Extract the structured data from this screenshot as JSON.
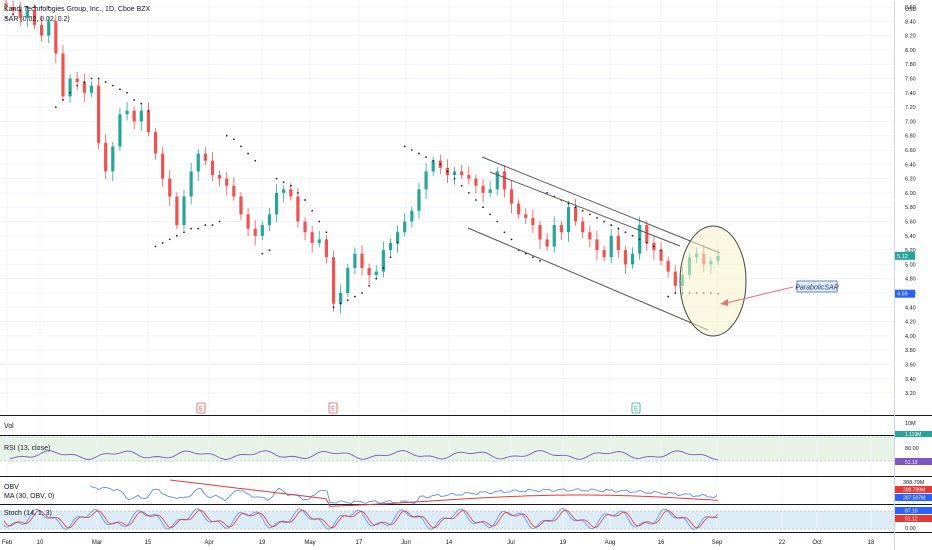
{
  "header": {
    "title": "Kandi Technologies Group, Inc., 1D, Cboe BZX",
    "indicator": "SAR (0.02, 0.02, 0.2)"
  },
  "axis": {
    "currency": "USD",
    "price_ticks": [
      "8.60",
      "8.40",
      "8.20",
      "8.00",
      "7.80",
      "7.60",
      "7.40",
      "7.20",
      "7.00",
      "6.80",
      "6.60",
      "6.40",
      "6.20",
      "6.00",
      "5.80",
      "5.60",
      "5.40",
      "5.20",
      "5.00",
      "4.80",
      "4.60",
      "4.40",
      "4.20",
      "4.00",
      "3.80",
      "3.60",
      "3.40",
      "3.20"
    ],
    "price_badges": [
      {
        "label": "5.12",
        "value": 5.12,
        "color": "#26a69a"
      },
      {
        "label": "4.59",
        "value": 4.59,
        "color": "#2962ff"
      }
    ],
    "x_ticks": [
      "Feb",
      "10",
      "Mar",
      "15",
      "Apr",
      "19",
      "May",
      "17",
      "Jun",
      "14",
      "Jul",
      "19",
      "Aug",
      "16",
      "Sep",
      "22",
      "Oct",
      "18"
    ]
  },
  "annotation": {
    "label": "ParabolicSAR"
  },
  "earnings_markers": [
    {
      "label": "E",
      "color": "#ef5350"
    },
    {
      "label": "E",
      "color": "#ef5350"
    },
    {
      "label": "E",
      "color": "#26a69a"
    }
  ],
  "panes": {
    "vol": {
      "title": "Vol",
      "scale": "10M",
      "badge": "1.119M"
    },
    "rsi": {
      "title": "RSI (13, close)",
      "scale": "80.00",
      "badge": "51.19"
    },
    "obv": {
      "title": "OBV",
      "subtitle": "MA (30, OBV, 0)",
      "scale": "308.79M",
      "badge1": "308.799M",
      "badge2": "307.507M"
    },
    "stoch": {
      "title": "Stoch (14, 1, 3)",
      "scale": "0.00",
      "badge1": "87.10",
      "badge2": "51.12"
    }
  },
  "colors": {
    "up": "#26a69a",
    "down": "#ef5350",
    "rsi": "#7e57c2",
    "obv": "#5b8def",
    "ma": "#e53935"
  },
  "chart_data": {
    "type": "candlestick",
    "title": "Kandi Technologies Group, Inc., 1D, Cboe BZX",
    "ylim": [
      3.1,
      8.7
    ],
    "grid": true,
    "close": [
      8.6,
      8.55,
      8.45,
      8.55,
      8.35,
      8.2,
      8.4,
      7.95,
      7.35,
      7.6,
      7.55,
      7.4,
      7.5,
      6.7,
      6.3,
      6.65,
      7.1,
      7.15,
      7.0,
      7.15,
      6.85,
      6.55,
      6.2,
      5.95,
      5.55,
      5.95,
      6.3,
      6.55,
      6.45,
      6.25,
      6.2,
      6.1,
      5.95,
      5.7,
      5.5,
      5.4,
      5.55,
      5.7,
      6.0,
      6.05,
      5.95,
      5.6,
      5.45,
      5.3,
      5.35,
      5.1,
      4.45,
      4.6,
      4.95,
      5.15,
      4.95,
      4.85,
      4.9,
      5.2,
      5.3,
      5.45,
      5.6,
      5.75,
      6.05,
      6.3,
      6.45,
      6.35,
      6.25,
      6.3,
      6.25,
      6.2,
      6.1,
      6.0,
      6.05,
      6.3,
      6.05,
      5.85,
      5.7,
      5.65,
      5.55,
      5.35,
      5.25,
      5.55,
      5.45,
      5.8,
      5.6,
      5.45,
      5.35,
      5.2,
      5.1,
      5.4,
      5.2,
      5.0,
      5.15,
      5.55,
      5.3,
      5.2,
      5.05,
      4.9,
      4.7,
      4.85,
      5.1,
      5.15,
      5.0,
      5.05,
      5.12
    ],
    "sar": [
      8.45,
      8.5,
      8.55,
      8.6,
      8.6,
      8.6,
      8.6,
      7.2,
      7.3,
      7.4,
      7.5,
      7.55,
      7.6,
      7.6,
      7.55,
      7.5,
      7.45,
      7.4,
      7.3,
      7.25,
      7.15,
      5.25,
      5.3,
      5.35,
      5.4,
      5.45,
      5.5,
      5.5,
      5.55,
      5.55,
      5.6,
      6.8,
      6.75,
      6.65,
      6.55,
      6.45,
      5.15,
      5.2,
      6.2,
      6.15,
      6.1,
      6.0,
      5.9,
      5.75,
      5.6,
      5.45,
      4.4,
      4.45,
      4.5,
      4.55,
      4.6,
      4.7,
      4.8,
      4.95,
      5.1,
      5.3,
      6.65,
      6.6,
      6.55,
      6.5,
      6.45,
      6.4,
      6.3,
      6.2,
      6.1,
      6.0,
      5.9,
      5.8,
      5.7,
      5.6,
      5.45,
      5.35,
      5.2,
      5.15,
      5.1,
      5.05,
      6.0,
      5.95,
      5.9,
      5.85,
      5.8,
      5.75,
      5.7,
      5.65,
      5.6,
      5.55,
      5.5,
      5.45,
      5.4,
      5.35,
      5.3,
      5.25,
      5.2,
      4.55,
      4.6,
      4.6,
      4.6,
      4.6,
      4.6,
      4.6,
      4.59
    ]
  }
}
